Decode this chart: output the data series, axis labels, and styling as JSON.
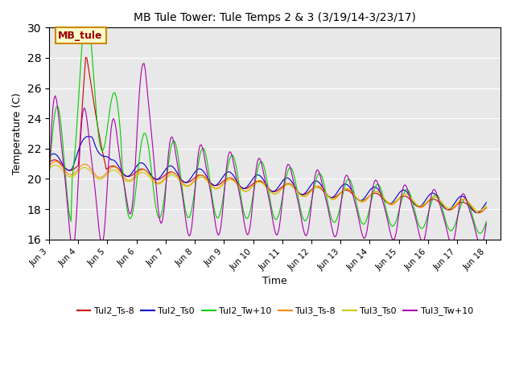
{
  "title": "MB Tule Tower: Tule Temps 2 & 3 (3/19/14-3/23/17)",
  "xlabel": "Time",
  "ylabel": "Temperature (C)",
  "ylim": [
    16,
    30
  ],
  "yticks": [
    16,
    18,
    20,
    22,
    24,
    26,
    28,
    30
  ],
  "xlim": [
    0,
    15.5
  ],
  "plot_bg": "#e8e8e8",
  "annotation_label": "MB_tule",
  "annotation_bg": "#ffffcc",
  "annotation_border": "#cc8800",
  "series_colors": {
    "Tul2_Ts-8": "#cc0000",
    "Tul2_Ts0": "#0000cc",
    "Tul2_Tw+10": "#00cc00",
    "Tul3_Ts-8": "#ff8800",
    "Tul3_Ts0": "#cccc00",
    "Tul3_Tw+10": "#aa00aa"
  },
  "xtick_labels": [
    "Jun 3",
    "Jun 4",
    "Jun 5",
    "Jun 6",
    "Jun 7",
    "Jun 8",
    "Jun 9",
    "Jun 10",
    "Jun 11",
    "Jun 12",
    "Jun 13",
    "Jun 14",
    "Jun 15",
    "Jun 16",
    "Jun 17",
    "Jun 18"
  ],
  "xtick_positions": [
    0,
    1,
    2,
    3,
    4,
    5,
    6,
    7,
    8,
    9,
    10,
    11,
    12,
    13,
    14,
    15
  ]
}
